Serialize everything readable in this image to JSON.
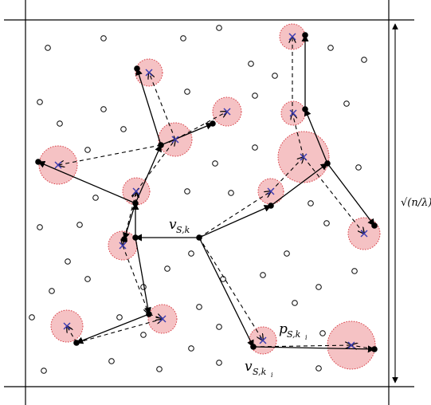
{
  "labels": {
    "v_sk": {
      "main": "v",
      "sub": "S,k"
    },
    "v_ski": {
      "main": "v",
      "sub": "S,k",
      "subsub": "i"
    },
    "p_ski": {
      "main": "p",
      "sub": "S,k",
      "subsub": "i"
    },
    "side": "√(n/λ)"
  },
  "colors": {
    "disc_fill": "#f5c2c4",
    "disc_stroke": "#d9434a",
    "x_mark": "#3a3ab0",
    "ink": "#000000"
  },
  "icons": {
    "node": "filled-dot",
    "open_point": "hollow-circle",
    "target": "x-mark"
  }
}
